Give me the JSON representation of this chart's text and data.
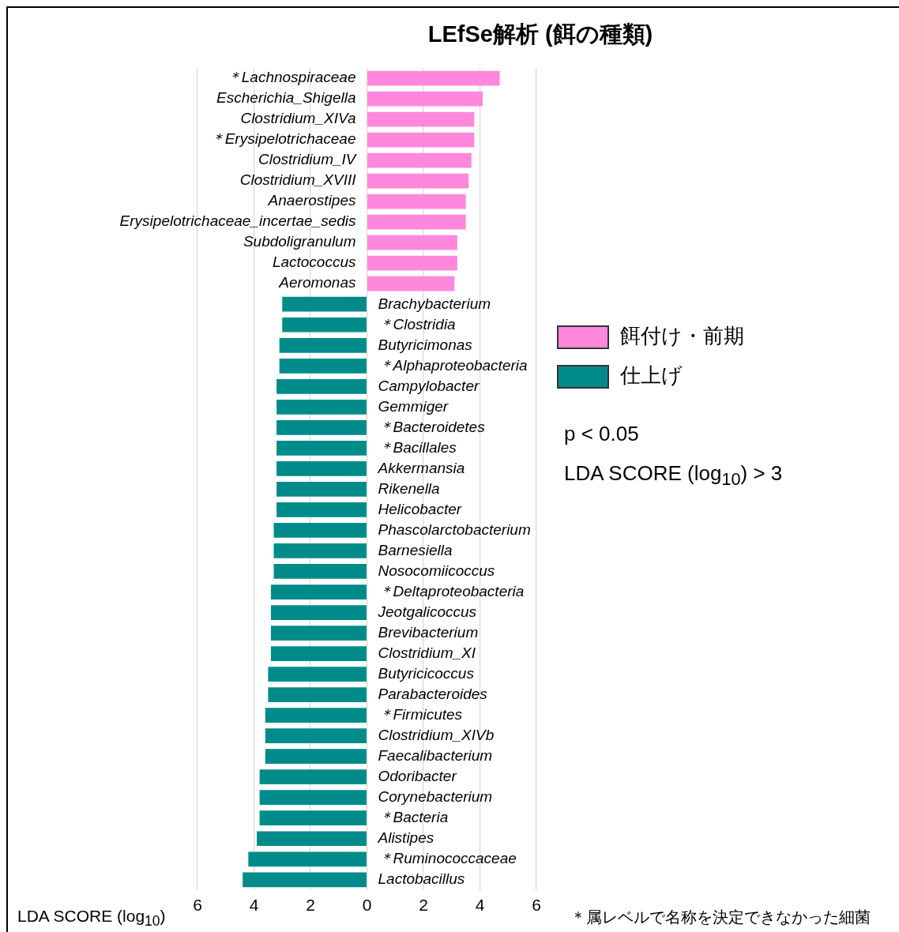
{
  "chart_data": {
    "type": "bar",
    "orientation": "horizontal",
    "title": "LEfSe解析 (餌の種類)",
    "xlabel": "LDA SCORE (log$_{10}$)",
    "categories": [
      "＊Lachnospiraceae",
      "Escherichia_Shigella",
      "Clostridium_XIVa",
      "＊Erysipelotrichaceae",
      "Clostridium_IV",
      "Clostridium_XVIII",
      "Anaerostipes",
      "Erysipelotrichaceae_incertae_sedis",
      "Subdoligranulum",
      "Lactococcus",
      "Aeromonas",
      "Brachybacterium",
      "＊Clostridia",
      "Butyricimonas",
      "＊Alphaproteobacteria",
      "Campylobacter",
      "Gemmiger",
      "＊Bacteroidetes",
      "＊Bacillales",
      "Akkermansia",
      "Rikenella",
      "Helicobacter",
      "Phascolarctobacterium",
      "Barnesiella",
      "Nosocomiicoccus",
      "＊Deltaproteobacteria",
      "Jeotgalicoccus",
      "Brevibacterium",
      "Clostridium_XI",
      "Butyricicoccus",
      "Parabacteroides",
      "＊Firmicutes",
      "Clostridium_XIVb",
      "Faecalibacterium",
      "Odoribacter",
      "Corynebacterium",
      "＊Bacteria",
      "Alistipes",
      "＊Ruminococcaceae",
      "Lactobacillus"
    ],
    "series": [
      {
        "name": "餌付け・前期",
        "color": "#ff88dd",
        "values": [
          4.7,
          4.1,
          3.8,
          3.8,
          3.7,
          3.6,
          3.5,
          3.5,
          3.2,
          3.2,
          3.1,
          null,
          null,
          null,
          null,
          null,
          null,
          null,
          null,
          null,
          null,
          null,
          null,
          null,
          null,
          null,
          null,
          null,
          null,
          null,
          null,
          null,
          null,
          null,
          null,
          null,
          null,
          null,
          null,
          null
        ]
      },
      {
        "name": "仕上げ",
        "color": "#008b8b",
        "values": [
          null,
          null,
          null,
          null,
          null,
          null,
          null,
          null,
          null,
          null,
          null,
          -3.0,
          -3.0,
          -3.1,
          -3.1,
          -3.2,
          -3.2,
          -3.2,
          -3.2,
          -3.2,
          -3.2,
          -3.2,
          -3.3,
          -3.3,
          -3.3,
          -3.4,
          -3.4,
          -3.4,
          -3.4,
          -3.5,
          -3.5,
          -3.6,
          -3.6,
          -3.6,
          -3.8,
          -3.8,
          -3.8,
          -3.9,
          -4.2,
          -4.4
        ]
      }
    ],
    "xlim": [
      -6,
      6
    ],
    "xticks": [
      {
        "value": -6,
        "label": "6"
      },
      {
        "value": -4,
        "label": "4"
      },
      {
        "value": -2,
        "label": "2"
      },
      0,
      2,
      4,
      6
    ],
    "grid": "x",
    "legend": "right",
    "annotations": [
      "p < 0.05",
      "LDA SCORE (log$_{10}$) > 3",
      "＊属レベルで名称を決定できなかった細菌"
    ]
  }
}
